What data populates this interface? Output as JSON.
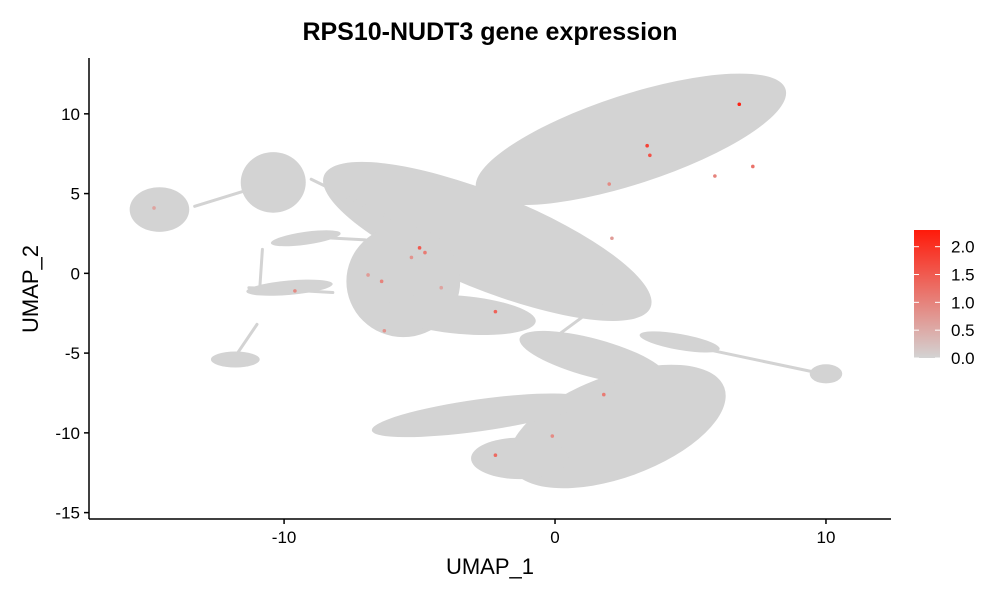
{
  "chart_data": {
    "type": "scatter",
    "title": "RPS10-NUDT3 gene expression",
    "xlabel": "UMAP_1",
    "ylabel": "UMAP_2",
    "xlim": [
      -17.2,
      12.4
    ],
    "ylim": [
      -15.4,
      13.5
    ],
    "x_ticks": [
      -10,
      0,
      10
    ],
    "y_ticks": [
      -15,
      -10,
      -5,
      0,
      5,
      10
    ],
    "x_tick_labels": [
      "-10",
      "0",
      "10"
    ],
    "y_tick_labels": [
      "-15",
      "-10",
      "-5",
      "0",
      "5",
      "10"
    ],
    "grid": false,
    "legend": {
      "placement": "right",
      "type": "colorbar",
      "min": 0,
      "max": 2.3,
      "ticks": [
        0.0,
        0.5,
        1.0,
        1.5,
        2.0
      ],
      "tick_labels": [
        "0.0",
        "0.5",
        "1.0",
        "1.5",
        "2.0"
      ],
      "low_color": "#d3d3d3",
      "high_color": "#ff1a0a"
    },
    "colors": {
      "background_cells": "#d3d3d3",
      "expressing_cells": "#ff3b20"
    },
    "expressing_cells": [
      {
        "x": 6.8,
        "y": 10.6,
        "value": 2.2
      },
      {
        "x": 3.4,
        "y": 8.0,
        "value": 1.8
      },
      {
        "x": 3.5,
        "y": 7.4,
        "value": 1.6
      },
      {
        "x": 7.3,
        "y": 6.7,
        "value": 1.2
      },
      {
        "x": 5.9,
        "y": 6.1,
        "value": 1.0
      },
      {
        "x": 2.0,
        "y": 5.6,
        "value": 0.9
      },
      {
        "x": -14.8,
        "y": 4.1,
        "value": 0.6
      },
      {
        "x": -5.0,
        "y": 1.6,
        "value": 1.5
      },
      {
        "x": -4.8,
        "y": 1.3,
        "value": 1.1
      },
      {
        "x": -5.3,
        "y": 1.0,
        "value": 0.8
      },
      {
        "x": -6.9,
        "y": -0.1,
        "value": 0.7
      },
      {
        "x": -6.4,
        "y": -0.5,
        "value": 1.0
      },
      {
        "x": -9.6,
        "y": -1.1,
        "value": 0.9
      },
      {
        "x": -2.2,
        "y": -2.4,
        "value": 1.4
      },
      {
        "x": -6.3,
        "y": -3.6,
        "value": 0.8
      },
      {
        "x": 1.8,
        "y": -7.6,
        "value": 1.1
      },
      {
        "x": -0.1,
        "y": -10.2,
        "value": 0.9
      },
      {
        "x": -2.2,
        "y": -11.4,
        "value": 1.3
      },
      {
        "x": 2.1,
        "y": 2.2,
        "value": 0.7
      },
      {
        "x": -4.2,
        "y": -0.9,
        "value": 0.6
      }
    ]
  }
}
